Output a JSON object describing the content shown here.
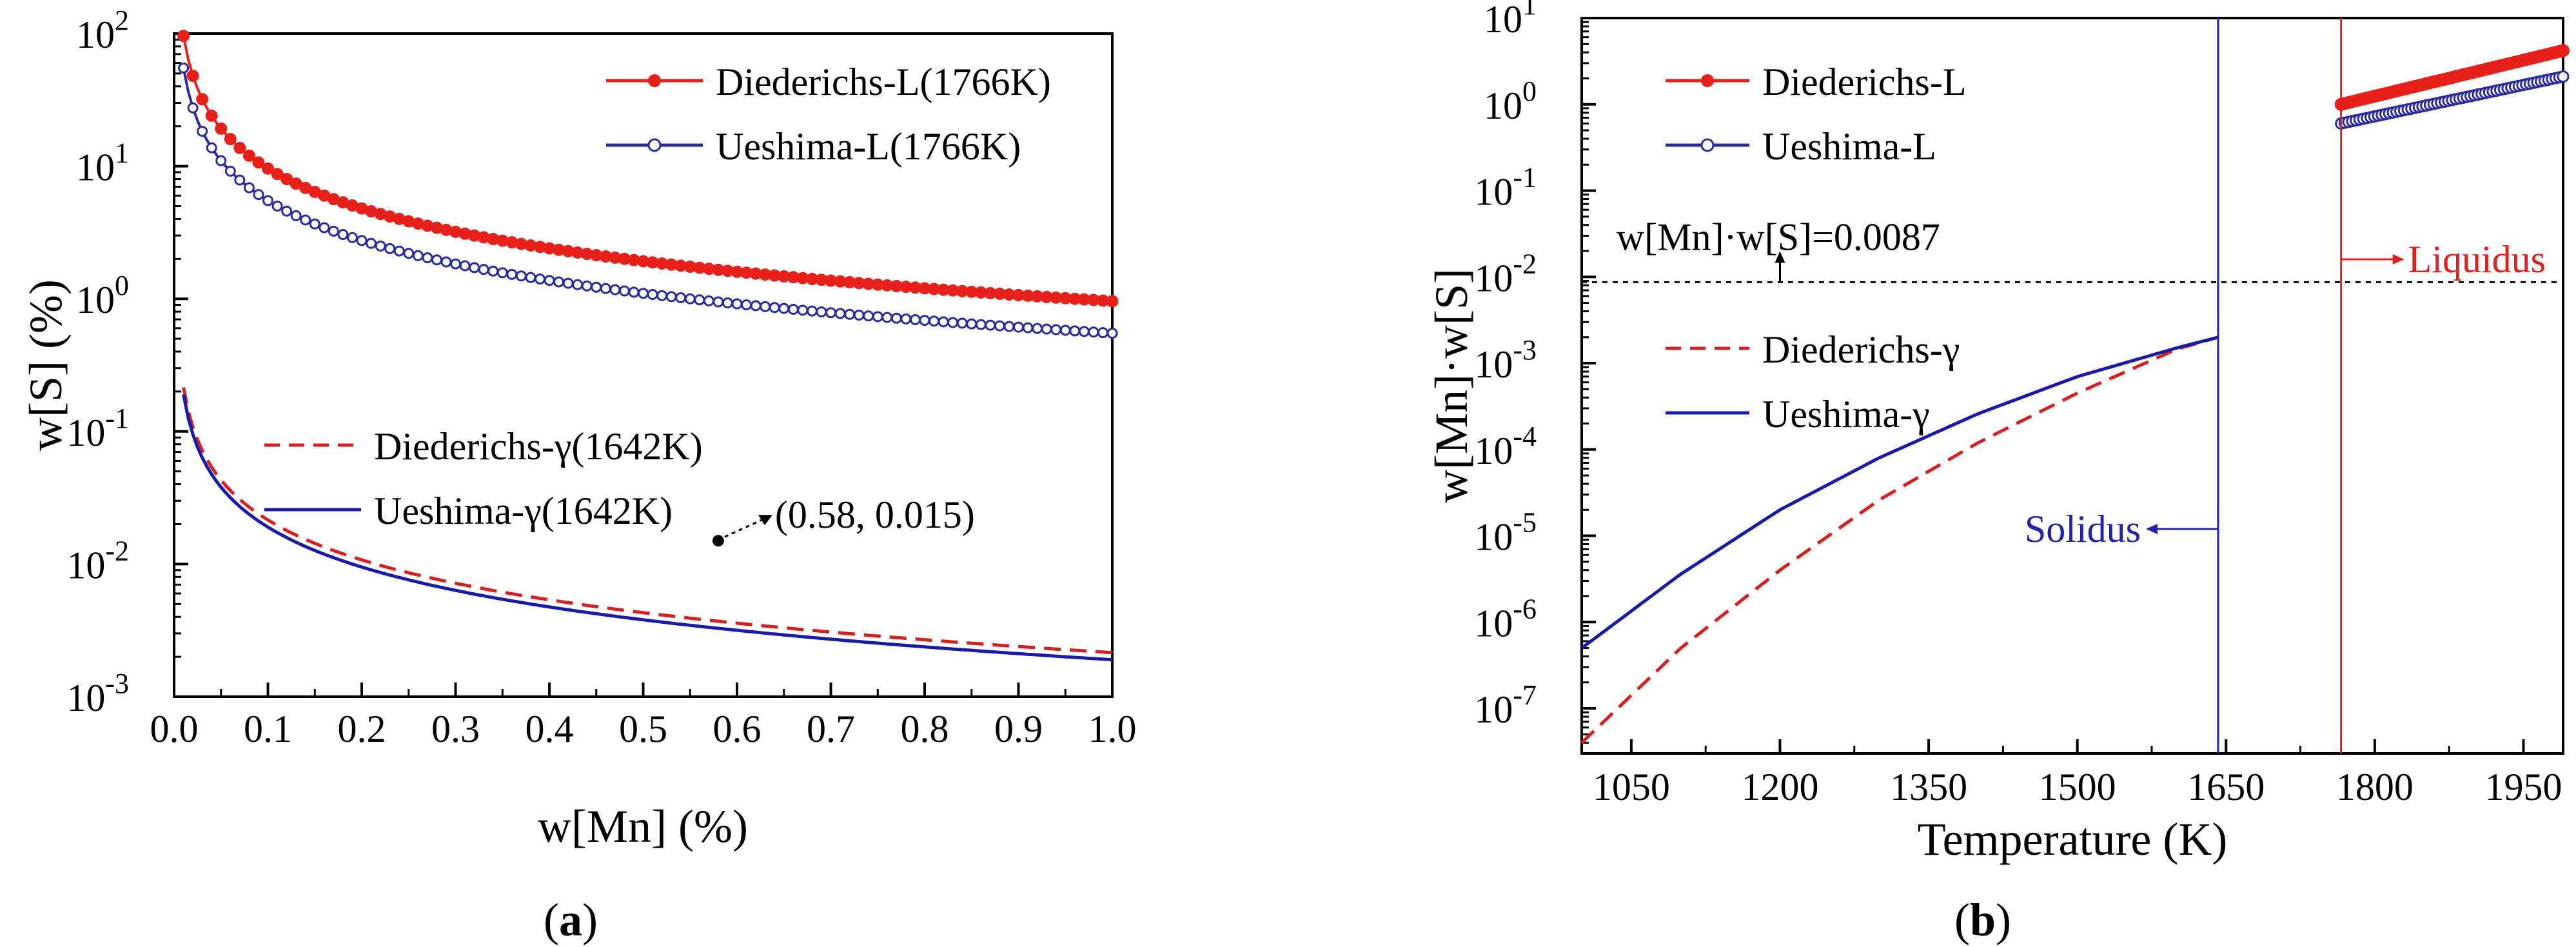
{
  "chart_data": [
    {
      "id": "a",
      "type": "line",
      "panel_label": "a",
      "xlabel": "w[Mn] (%)",
      "ylabel": "w[S] (%)",
      "xlim": [
        0.0,
        1.0
      ],
      "ylim": [
        0.001,
        100
      ],
      "yscale": "log",
      "x_ticks": [
        "0.0",
        "0.1",
        "0.2",
        "0.3",
        "0.4",
        "0.5",
        "0.6",
        "0.7",
        "0.8",
        "0.9",
        "1.0"
      ],
      "y_ticks": [
        {
          "base": "10",
          "exp": "2",
          "value": 100
        },
        {
          "base": "10",
          "exp": "1",
          "value": 10
        },
        {
          "base": "10",
          "exp": "0",
          "value": 1
        },
        {
          "base": "10",
          "exp": "-1",
          "value": 0.1
        },
        {
          "base": "10",
          "exp": "-2",
          "value": 0.01
        },
        {
          "base": "10",
          "exp": "-3",
          "value": 0.001
        }
      ],
      "series": [
        {
          "name": "Diederichs-L(1766K)",
          "color": "#e8201a",
          "style": "line-filled-markers",
          "K": 0.96,
          "formula": "K / x"
        },
        {
          "name": "Ueshima-L(1766K)",
          "color": "#2a2aa0",
          "style": "line-open-markers",
          "K": 0.55,
          "formula": "K / x"
        },
        {
          "name": "Diederichs-γ(1642K)",
          "color": "#d42020",
          "style": "dashed",
          "K": 0.00215,
          "formula": "K / x"
        },
        {
          "name": "Ueshima-γ(1642K)",
          "color": "#1a1aa8",
          "style": "solid",
          "K": 0.0019,
          "formula": "K / x"
        }
      ],
      "annotations": [
        {
          "text": "(0.58, 0.015)",
          "x": 0.58,
          "y": 0.015
        }
      ]
    },
    {
      "id": "b",
      "type": "line",
      "panel_label": "b",
      "xlabel": "Temperature (K)",
      "ylabel": "w[Mn]·w[S]",
      "xlim": [
        1000,
        1990
      ],
      "ylim": [
        3e-08,
        10
      ],
      "yscale": "log",
      "x_ticks": [
        "1050",
        "1200",
        "1350",
        "1500",
        "1650",
        "1800",
        "1950"
      ],
      "y_ticks": [
        {
          "base": "10",
          "exp": "1",
          "value": 10
        },
        {
          "base": "10",
          "exp": "0",
          "value": 1
        },
        {
          "base": "10",
          "exp": "-1",
          "value": 0.1
        },
        {
          "base": "10",
          "exp": "-2",
          "value": 0.01
        },
        {
          "base": "10",
          "exp": "-3",
          "value": 0.001
        },
        {
          "base": "10",
          "exp": "-4",
          "value": 0.0001
        },
        {
          "base": "10",
          "exp": "-5",
          "value": 1e-05
        },
        {
          "base": "10",
          "exp": "-6",
          "value": 1e-06
        },
        {
          "base": "10",
          "exp": "-7",
          "value": 1e-07
        }
      ],
      "series": [
        {
          "name": "Diederichs-L",
          "color": "#e8201a",
          "style": "line-filled-markers",
          "x": [
            1766,
            1990
          ],
          "y": [
            1.0,
            4.2
          ]
        },
        {
          "name": "Ueshima-L",
          "color": "#2a2aa0",
          "style": "line-open-markers",
          "x": [
            1766,
            1990
          ],
          "y": [
            0.6,
            2.1
          ]
        },
        {
          "name": "Diederichs-γ",
          "color": "#d42020",
          "style": "dashed",
          "x": [
            1000,
            1100,
            1200,
            1300,
            1400,
            1500,
            1600,
            1642
          ],
          "y": [
            4e-08,
            5e-07,
            4e-06,
            2.6e-05,
            0.00012,
            0.00045,
            0.00145,
            0.002
          ]
        },
        {
          "name": "Ueshima-γ",
          "color": "#1a1aa8",
          "style": "solid",
          "x": [
            1000,
            1100,
            1200,
            1300,
            1400,
            1500,
            1600,
            1642
          ],
          "y": [
            5e-07,
            3.6e-06,
            2e-05,
            8e-05,
            0.00026,
            0.0007,
            0.0015,
            0.002
          ]
        }
      ],
      "reference_lines": [
        {
          "orientation": "horizontal",
          "value": 0.0087,
          "label": "w[Mn]·w[S]=0.0087",
          "color": "#000000",
          "style": "dotted"
        },
        {
          "orientation": "vertical",
          "value": 1642,
          "label": "Solidus",
          "color": "#2222aa"
        },
        {
          "orientation": "vertical",
          "value": 1766,
          "label": "Liquidus",
          "color": "#e02020"
        }
      ]
    }
  ]
}
